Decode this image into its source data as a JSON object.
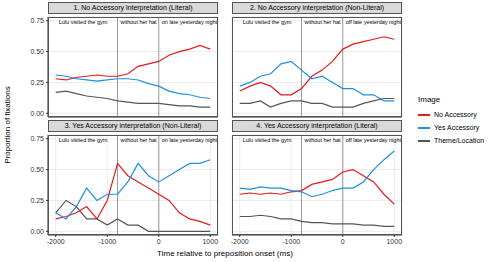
{
  "x_label": "Time relative to preposition onset (ms)",
  "y_label": "Proportion of fixations",
  "legend_title": "Image",
  "legend": "right",
  "chart_data": [
    {
      "type": "line",
      "title": "1. No Accessory interpretation (Literal)",
      "grid": true,
      "phrases": [
        {
          "text": "Lulu visited the gym",
          "start": -2000
        },
        {
          "text": "without her hat",
          "start": -800
        },
        {
          "text": "on late yesterday night",
          "start": 0
        }
      ],
      "xlim": [
        -2150,
        1150
      ],
      "xticks": [
        -2000,
        -1000,
        0,
        1000
      ],
      "ylim": [
        -0.03,
        0.78
      ],
      "yticks": [
        {
          "value": 0,
          "label": "0.00"
        },
        {
          "value": 0.25,
          "label": "0.25"
        },
        {
          "value": 0.5,
          "label": "0.50"
        },
        {
          "value": 0.75,
          "label": "0.75"
        }
      ],
      "x": [
        -2000,
        -1800,
        -1600,
        -1400,
        -1200,
        -1000,
        -800,
        -600,
        -400,
        -200,
        0,
        200,
        400,
        600,
        800,
        1000
      ],
      "series": [
        {
          "name": "No Accessory",
          "color": "#e31a1c",
          "values": [
            0.28,
            0.27,
            0.29,
            0.3,
            0.31,
            0.3,
            0.3,
            0.32,
            0.38,
            0.4,
            0.42,
            0.47,
            0.5,
            0.52,
            0.55,
            0.52
          ]
        },
        {
          "name": "Yes Accessory",
          "color": "#1f8fe0",
          "values": [
            0.31,
            0.3,
            0.28,
            0.27,
            0.26,
            0.27,
            0.28,
            0.28,
            0.27,
            0.24,
            0.22,
            0.18,
            0.16,
            0.15,
            0.13,
            0.12
          ]
        },
        {
          "name": "Theme/Location",
          "color": "#555555",
          "values": [
            0.17,
            0.18,
            0.16,
            0.14,
            0.13,
            0.12,
            0.1,
            0.09,
            0.08,
            0.08,
            0.08,
            0.07,
            0.06,
            0.06,
            0.05,
            0.05
          ]
        }
      ]
    },
    {
      "type": "line",
      "title": "2. No Accessory interpretation (Non-Literal)",
      "grid": true,
      "phrases": [
        {
          "text": "Lulu visited the gym",
          "start": -2000
        },
        {
          "text": "without her hat",
          "start": -800
        },
        {
          "text": "off late yesterday night",
          "start": 0
        }
      ],
      "xlim": [
        -2150,
        1150
      ],
      "xticks": [
        -2000,
        -1000,
        0,
        1000
      ],
      "ylim": [
        -0.03,
        0.78
      ],
      "yticks": [
        {
          "value": 0,
          "label": "0.00"
        },
        {
          "value": 0.25,
          "label": "0.25"
        },
        {
          "value": 0.5,
          "label": "0.50"
        },
        {
          "value": 0.75,
          "label": "0.75"
        }
      ],
      "x": [
        -2000,
        -1800,
        -1600,
        -1400,
        -1200,
        -1000,
        -800,
        -600,
        -400,
        -200,
        0,
        200,
        400,
        600,
        800,
        1000
      ],
      "series": [
        {
          "name": "No Accessory",
          "color": "#e31a1c",
          "values": [
            0.18,
            0.22,
            0.25,
            0.22,
            0.15,
            0.15,
            0.2,
            0.3,
            0.35,
            0.42,
            0.52,
            0.56,
            0.58,
            0.6,
            0.62,
            0.6
          ]
        },
        {
          "name": "Yes Accessory",
          "color": "#1f8fe0",
          "values": [
            0.22,
            0.25,
            0.3,
            0.32,
            0.4,
            0.42,
            0.35,
            0.28,
            0.3,
            0.25,
            0.2,
            0.2,
            0.15,
            0.15,
            0.1,
            0.1
          ]
        },
        {
          "name": "Theme/Location",
          "color": "#555555",
          "values": [
            0.08,
            0.08,
            0.1,
            0.05,
            0.08,
            0.1,
            0.1,
            0.08,
            0.08,
            0.05,
            0.05,
            0.05,
            0.08,
            0.1,
            0.12,
            0.12
          ]
        }
      ]
    },
    {
      "type": "line",
      "title": "3. Yes Accessory interpretation (Non-Literal)",
      "grid": true,
      "phrases": [
        {
          "text": "Lulu visited the gym",
          "start": -2000
        },
        {
          "text": "without her hat",
          "start": -800
        },
        {
          "text": "on late yesterday night",
          "start": 0
        }
      ],
      "xlim": [
        -2150,
        1150
      ],
      "xticks": [
        -2000,
        -1000,
        0,
        1000
      ],
      "ylim": [
        -0.03,
        0.78
      ],
      "yticks": [
        {
          "value": 0,
          "label": "0.00"
        },
        {
          "value": 0.25,
          "label": "0.25"
        },
        {
          "value": 0.5,
          "label": "0.50"
        },
        {
          "value": 0.75,
          "label": "0.75"
        }
      ],
      "x": [
        -2000,
        -1800,
        -1600,
        -1400,
        -1200,
        -1000,
        -800,
        -600,
        -400,
        -200,
        0,
        200,
        400,
        600,
        800,
        1000
      ],
      "series": [
        {
          "name": "No Accessory",
          "color": "#e31a1c",
          "values": [
            0.1,
            0.12,
            0.15,
            0.2,
            0.1,
            0.25,
            0.55,
            0.45,
            0.4,
            0.35,
            0.3,
            0.25,
            0.15,
            0.1,
            0.08,
            0.05
          ]
        },
        {
          "name": "Yes Accessory",
          "color": "#1f8fe0",
          "values": [
            0.15,
            0.1,
            0.2,
            0.35,
            0.25,
            0.3,
            0.3,
            0.4,
            0.55,
            0.45,
            0.4,
            0.45,
            0.5,
            0.55,
            0.55,
            0.58
          ]
        },
        {
          "name": "Theme/Location",
          "color": "#555555",
          "values": [
            0.15,
            0.25,
            0.2,
            0.1,
            0.1,
            0.05,
            0.1,
            0.05,
            0.05,
            0.0,
            0.0,
            0.0,
            0.0,
            0.0,
            0.0,
            0.0
          ]
        }
      ]
    },
    {
      "type": "line",
      "title": "4. Yes Accessory interpretation (Literal)",
      "grid": true,
      "phrases": [
        {
          "text": "Lulu visited the gym",
          "start": -2000
        },
        {
          "text": "without her hat",
          "start": -800
        },
        {
          "text": "off late yesterday night",
          "start": 0
        }
      ],
      "xlim": [
        -2150,
        1150
      ],
      "xticks": [
        -2000,
        -1000,
        0,
        1000
      ],
      "ylim": [
        -0.03,
        0.78
      ],
      "yticks": [
        {
          "value": 0,
          "label": "0.00"
        },
        {
          "value": 0.25,
          "label": "0.25"
        },
        {
          "value": 0.5,
          "label": "0.50"
        },
        {
          "value": 0.75,
          "label": "0.75"
        }
      ],
      "x": [
        -2000,
        -1800,
        -1600,
        -1400,
        -1200,
        -1000,
        -800,
        -600,
        -400,
        -200,
        0,
        200,
        400,
        600,
        800,
        1000
      ],
      "series": [
        {
          "name": "No Accessory",
          "color": "#e31a1c",
          "values": [
            0.3,
            0.31,
            0.3,
            0.31,
            0.3,
            0.32,
            0.33,
            0.38,
            0.4,
            0.42,
            0.48,
            0.5,
            0.45,
            0.4,
            0.3,
            0.22
          ]
        },
        {
          "name": "Yes Accessory",
          "color": "#1f8fe0",
          "values": [
            0.35,
            0.34,
            0.36,
            0.35,
            0.35,
            0.33,
            0.32,
            0.28,
            0.3,
            0.33,
            0.35,
            0.35,
            0.4,
            0.5,
            0.58,
            0.65
          ]
        },
        {
          "name": "Theme/Location",
          "color": "#555555",
          "values": [
            0.12,
            0.12,
            0.13,
            0.12,
            0.1,
            0.1,
            0.08,
            0.07,
            0.07,
            0.06,
            0.06,
            0.06,
            0.05,
            0.05,
            0.04,
            0.04
          ]
        }
      ]
    }
  ]
}
